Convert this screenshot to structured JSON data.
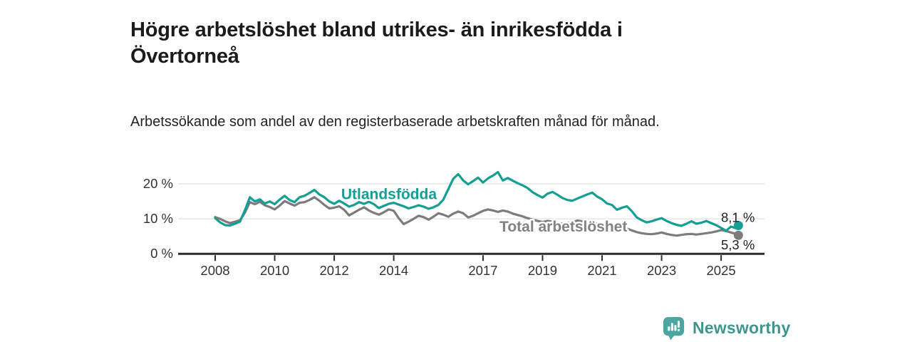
{
  "header": {
    "title": "Högre arbetslöshet bland utrikes- än inrikesfödda i Övertorneå",
    "subtitle": "Arbetssökande som andel av den registerbaserade arbetskraften månad för månad."
  },
  "footer": {
    "brand": "Newsworthy",
    "logo_icon": "bar-chart-speech-bubble-icon",
    "brand_text_color": "#3d968e",
    "logo_bubble_color": "#4aa69e"
  },
  "chart_data": {
    "type": "line",
    "title": "Högre arbetslöshet bland utrikes- än inrikesfödda i Övertorneå",
    "subtitle": "Arbetssökande som andel av den registerbaserade arbetskraften månad för månad.",
    "y_unit": "percent of labour force",
    "x_unit": "year (monthly series, sampled ~every 2 months)",
    "ylim": [
      0,
      26.5
    ],
    "xlim": [
      2006.8,
      2026.5
    ],
    "grid": "horizontal",
    "axis_color": "#2d2d2d",
    "grid_color": "#d9d9d9",
    "tick_label_color": "#333333",
    "yticks": [
      {
        "value": 0,
        "label": "0 %"
      },
      {
        "value": 10,
        "label": "10 %"
      },
      {
        "value": 20,
        "label": "20 %"
      }
    ],
    "xticks": [
      {
        "value": 2008,
        "label": "2008"
      },
      {
        "value": 2010,
        "label": "2010"
      },
      {
        "value": 2012,
        "label": "2012"
      },
      {
        "value": 2014,
        "label": "2014"
      },
      {
        "value": 2017,
        "label": "2017"
      },
      {
        "value": 2019,
        "label": "2019"
      },
      {
        "value": 2021,
        "label": "2021"
      },
      {
        "value": 2023,
        "label": "2023"
      },
      {
        "value": 2025,
        "label": "2025"
      }
    ],
    "x_start": 2008,
    "x_step": 0.16667,
    "x_end": 2025.58,
    "series": [
      {
        "name": "Total arbetslöshet",
        "color": "#7c7c7c",
        "label_color": "#828282",
        "end_label": "5,3 %",
        "end_value": 5.3,
        "label_anchor": {
          "x": 2019.7,
          "y": 8.0
        },
        "values": [
          10.5,
          10,
          9.3,
          8.8,
          9.2,
          9.6,
          11.8,
          14.8,
          14.2,
          14.9,
          13.9,
          13.4,
          12.7,
          13.8,
          15.1,
          14.4,
          13.8,
          14.6,
          14.8,
          15.4,
          16.2,
          15.2,
          14,
          13,
          13.2,
          13.6,
          12.6,
          11,
          11.8,
          12.6,
          13.3,
          12.4,
          11.7,
          11.2,
          11.9,
          12.7,
          12.3,
          10.2,
          8.5,
          9.2,
          10,
          10.9,
          10.5,
          9.8,
          10.6,
          11.6,
          11.2,
          10.6,
          11.5,
          12.1,
          11.6,
          10.4,
          10.9,
          11.6,
          12.3,
          12.7,
          12.4,
          12,
          12.4,
          12.1,
          11.5,
          11.1,
          10.7,
          10.2,
          9.8,
          9.4,
          9.1,
          9.4,
          9.2,
          8.9,
          8.6,
          8.8,
          9,
          9.5,
          9.3,
          9,
          8.8,
          8.6,
          8.4,
          8,
          7.7,
          7.3,
          7.1,
          7.2,
          6.7,
          6.2,
          5.9,
          5.7,
          5.6,
          5.8,
          6.1,
          5.7,
          5.4,
          5.2,
          5.4,
          5.6,
          5.7,
          5.5,
          5.7,
          5.9,
          6.1,
          6.4,
          6.8,
          6.5,
          6.1,
          5.7,
          5.3
        ]
      },
      {
        "name": "Utlandsfödda",
        "color": "#149e94",
        "label_color": "#149e94",
        "end_label": "8,1 %",
        "end_value": 8.1,
        "label_anchor": {
          "x": 2013.84,
          "y": 17.3
        },
        "values": [
          10.2,
          9,
          8.2,
          8.1,
          8.6,
          9.2,
          12.5,
          16.2,
          15,
          15.6,
          14.4,
          15,
          14.2,
          15.5,
          16.6,
          15.4,
          14.8,
          16.2,
          16.6,
          17.4,
          18.3,
          17,
          16.2,
          15,
          14.3,
          15.2,
          14.4,
          13.5,
          14,
          14.8,
          14.3,
          14.9,
          14.2,
          13.1,
          13.7,
          14.3,
          14.6,
          14.1,
          13.6,
          13,
          13.4,
          13.9,
          13.5,
          12.9,
          13.3,
          14,
          15.5,
          18.5,
          21.5,
          22.8,
          21,
          19.9,
          20.8,
          21.8,
          20.4,
          21.6,
          22.4,
          23.4,
          21,
          21.7,
          20.9,
          20.2,
          19.6,
          18.8,
          17.6,
          16.8,
          16.1,
          17.2,
          17.7,
          16.9,
          16,
          15.4,
          15.2,
          15.8,
          16.4,
          17,
          17.5,
          16.4,
          15.6,
          14.4,
          14,
          12.6,
          13.2,
          13.6,
          12.2,
          10.4,
          9.6,
          9,
          9.3,
          9.8,
          10.2,
          9.4,
          8.8,
          8.3,
          8,
          8.6,
          9.3,
          8.6,
          8.9,
          9.4,
          8.8,
          8.2,
          7.4,
          6.6,
          7.8,
          7.3,
          8.1
        ]
      }
    ]
  }
}
